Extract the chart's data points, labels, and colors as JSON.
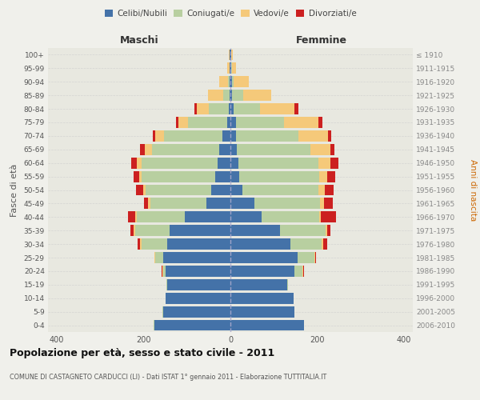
{
  "age_groups": [
    "0-4",
    "5-9",
    "10-14",
    "15-19",
    "20-24",
    "25-29",
    "30-34",
    "35-39",
    "40-44",
    "45-49",
    "50-54",
    "55-59",
    "60-64",
    "65-69",
    "70-74",
    "75-79",
    "80-84",
    "85-89",
    "90-94",
    "95-99",
    "100+"
  ],
  "birth_years": [
    "2006-2010",
    "2001-2005",
    "1996-2000",
    "1991-1995",
    "1986-1990",
    "1981-1985",
    "1976-1980",
    "1971-1975",
    "1966-1970",
    "1961-1965",
    "1956-1960",
    "1951-1955",
    "1946-1950",
    "1941-1945",
    "1936-1940",
    "1931-1935",
    "1926-1930",
    "1921-1925",
    "1916-1920",
    "1911-1915",
    "≤ 1910"
  ],
  "colors": {
    "celibi": "#4472a8",
    "coniugati": "#b8cfa0",
    "vedovi": "#f5c97a",
    "divorziati": "#cc2020"
  },
  "males": {
    "celibi": [
      175,
      155,
      150,
      145,
      150,
      155,
      145,
      140,
      105,
      55,
      45,
      35,
      30,
      25,
      18,
      8,
      4,
      2,
      1,
      1,
      1
    ],
    "coniugati": [
      2,
      2,
      0,
      2,
      5,
      18,
      60,
      80,
      110,
      130,
      150,
      170,
      175,
      155,
      135,
      90,
      45,
      15,
      5,
      1,
      0
    ],
    "vedovi": [
      0,
      0,
      0,
      0,
      1,
      2,
      4,
      3,
      5,
      4,
      5,
      5,
      10,
      18,
      20,
      22,
      28,
      35,
      20,
      5,
      2
    ],
    "divorziati": [
      0,
      0,
      0,
      0,
      2,
      0,
      5,
      8,
      15,
      10,
      18,
      12,
      14,
      10,
      6,
      5,
      5,
      0,
      0,
      0,
      0
    ]
  },
  "females": {
    "celibi": [
      170,
      148,
      145,
      130,
      148,
      155,
      138,
      115,
      72,
      55,
      28,
      20,
      18,
      15,
      12,
      12,
      8,
      4,
      3,
      2,
      2
    ],
    "coniugati": [
      0,
      0,
      0,
      2,
      18,
      38,
      72,
      105,
      132,
      152,
      175,
      185,
      185,
      170,
      145,
      112,
      60,
      25,
      5,
      1,
      0
    ],
    "vedovi": [
      0,
      0,
      0,
      0,
      1,
      2,
      3,
      3,
      5,
      8,
      14,
      18,
      28,
      45,
      68,
      78,
      80,
      65,
      35,
      10,
      3
    ],
    "divorziati": [
      0,
      0,
      0,
      0,
      2,
      3,
      10,
      8,
      35,
      20,
      20,
      18,
      18,
      10,
      8,
      10,
      8,
      0,
      0,
      0,
      0
    ]
  },
  "title": "Popolazione per età, sesso e stato civile - 2011",
  "subtitle": "COMUNE DI CASTAGNETO CARDUCCI (LI) - Dati ISTAT 1° gennaio 2011 - Elaborazione TUTTITALIA.IT",
  "xlabel_left": "Maschi",
  "xlabel_right": "Femmine",
  "ylabel_left": "Fasce di età",
  "ylabel_right": "Anni di nascita",
  "xlim": 420,
  "bg_color": "#f0f0eb",
  "grid_color": "#cccccc",
  "plot_bg": "#e8e8e0"
}
